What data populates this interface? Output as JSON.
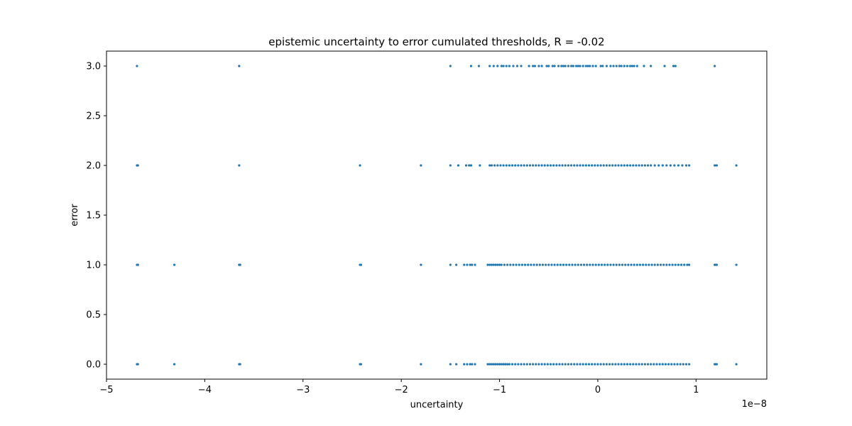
{
  "chart_data": {
    "type": "scatter",
    "title": "epistemic uncertainty to error cumulated thresholds, R = -0.02",
    "xlabel": "uncertainty",
    "ylabel": "error",
    "x_offset_label": "1e−8",
    "xlim": [
      -5.0,
      1.72
    ],
    "ylim": [
      -0.15,
      3.15
    ],
    "x_ticks": [
      -5,
      -4,
      -3,
      -2,
      -1,
      0,
      1
    ],
    "x_tick_labels": [
      "−5",
      "−4",
      "−3",
      "−2",
      "−1",
      "0",
      "1"
    ],
    "y_ticks": [
      0.0,
      0.5,
      1.0,
      1.5,
      2.0,
      2.5,
      3.0
    ],
    "y_tick_labels": [
      "0.0",
      "0.5",
      "1.0",
      "1.5",
      "2.0",
      "2.5",
      "3.0"
    ],
    "grid": false,
    "marker_color": "#1f77b4",
    "series": [
      {
        "y": 3.0,
        "x": [
          -4.69,
          -3.65,
          -1.5,
          -1.29,
          -1.21,
          -1.1,
          -1.06,
          -1.02,
          -0.98,
          -0.96,
          -0.93,
          -0.9,
          -0.86,
          -0.82,
          -0.78,
          -0.7,
          -0.66,
          -0.64,
          -0.6,
          -0.57,
          -0.52,
          -0.5,
          -0.46,
          -0.44,
          -0.4,
          -0.37,
          -0.35,
          -0.33,
          -0.3,
          -0.27,
          -0.25,
          -0.22,
          -0.2,
          -0.18,
          -0.15,
          -0.12,
          -0.1,
          -0.08,
          -0.05,
          -0.02,
          0.03,
          0.05,
          0.09,
          0.13,
          0.16,
          0.19,
          0.22,
          0.24,
          0.27,
          0.3,
          0.33,
          0.35,
          0.37,
          0.4,
          0.47,
          0.54,
          0.68,
          0.77,
          0.79,
          1.19
        ]
      },
      {
        "y": 2.0,
        "x": [
          -4.69,
          -4.68,
          -3.65,
          -2.42,
          -1.8,
          -1.5,
          -1.42,
          -1.34,
          -1.31,
          -1.29,
          -1.2,
          -1.1,
          -1.08,
          -1.05,
          -1.02,
          -0.99,
          -0.96,
          -0.93,
          -0.9,
          -0.87,
          -0.84,
          -0.81,
          -0.78,
          -0.75,
          -0.72,
          -0.69,
          -0.66,
          -0.63,
          -0.6,
          -0.57,
          -0.54,
          -0.51,
          -0.48,
          -0.45,
          -0.42,
          -0.39,
          -0.36,
          -0.33,
          -0.3,
          -0.27,
          -0.24,
          -0.21,
          -0.18,
          -0.15,
          -0.12,
          -0.09,
          -0.06,
          -0.03,
          0.0,
          0.03,
          0.06,
          0.09,
          0.12,
          0.15,
          0.18,
          0.21,
          0.24,
          0.27,
          0.3,
          0.33,
          0.36,
          0.39,
          0.42,
          0.45,
          0.48,
          0.51,
          0.54,
          0.58,
          0.62,
          0.66,
          0.7,
          0.74,
          0.78,
          0.82,
          0.86,
          0.9,
          0.93,
          1.19,
          1.21,
          1.41
        ]
      },
      {
        "y": 1.0,
        "x": [
          -4.69,
          -4.68,
          -4.31,
          -3.65,
          -3.64,
          -2.42,
          -2.41,
          -1.8,
          -1.5,
          -1.44,
          -1.36,
          -1.33,
          -1.3,
          -1.28,
          -1.25,
          -1.12,
          -1.1,
          -1.08,
          -1.06,
          -1.04,
          -1.02,
          -1.0,
          -0.98,
          -0.95,
          -0.92,
          -0.89,
          -0.86,
          -0.83,
          -0.8,
          -0.77,
          -0.74,
          -0.71,
          -0.68,
          -0.65,
          -0.62,
          -0.59,
          -0.56,
          -0.53,
          -0.5,
          -0.47,
          -0.44,
          -0.41,
          -0.38,
          -0.35,
          -0.32,
          -0.29,
          -0.26,
          -0.23,
          -0.2,
          -0.17,
          -0.14,
          -0.11,
          -0.08,
          -0.05,
          -0.02,
          0.01,
          0.04,
          0.07,
          0.1,
          0.13,
          0.16,
          0.19,
          0.22,
          0.25,
          0.28,
          0.31,
          0.34,
          0.37,
          0.4,
          0.43,
          0.46,
          0.49,
          0.52,
          0.55,
          0.58,
          0.61,
          0.64,
          0.67,
          0.7,
          0.73,
          0.76,
          0.79,
          0.82,
          0.85,
          0.88,
          0.91,
          0.93,
          1.19,
          1.2,
          1.21,
          1.41
        ]
      },
      {
        "y": 0.0,
        "x": [
          -4.69,
          -4.68,
          -4.31,
          -3.65,
          -3.64,
          -2.42,
          -2.41,
          -1.8,
          -1.5,
          -1.44,
          -1.36,
          -1.33,
          -1.3,
          -1.28,
          -1.25,
          -1.12,
          -1.1,
          -1.08,
          -1.06,
          -1.04,
          -1.02,
          -1.0,
          -0.98,
          -0.96,
          -0.94,
          -0.92,
          -0.9,
          -0.87,
          -0.84,
          -0.81,
          -0.78,
          -0.75,
          -0.72,
          -0.69,
          -0.66,
          -0.63,
          -0.6,
          -0.57,
          -0.54,
          -0.51,
          -0.48,
          -0.45,
          -0.42,
          -0.39,
          -0.36,
          -0.33,
          -0.3,
          -0.27,
          -0.24,
          -0.21,
          -0.18,
          -0.15,
          -0.12,
          -0.09,
          -0.06,
          -0.03,
          0.0,
          0.03,
          0.06,
          0.09,
          0.12,
          0.15,
          0.18,
          0.21,
          0.24,
          0.27,
          0.3,
          0.33,
          0.36,
          0.39,
          0.42,
          0.45,
          0.48,
          0.51,
          0.54,
          0.57,
          0.6,
          0.63,
          0.66,
          0.69,
          0.72,
          0.75,
          0.78,
          0.81,
          0.84,
          0.87,
          0.9,
          0.93,
          1.19,
          1.2,
          1.21,
          1.41
        ]
      }
    ]
  }
}
